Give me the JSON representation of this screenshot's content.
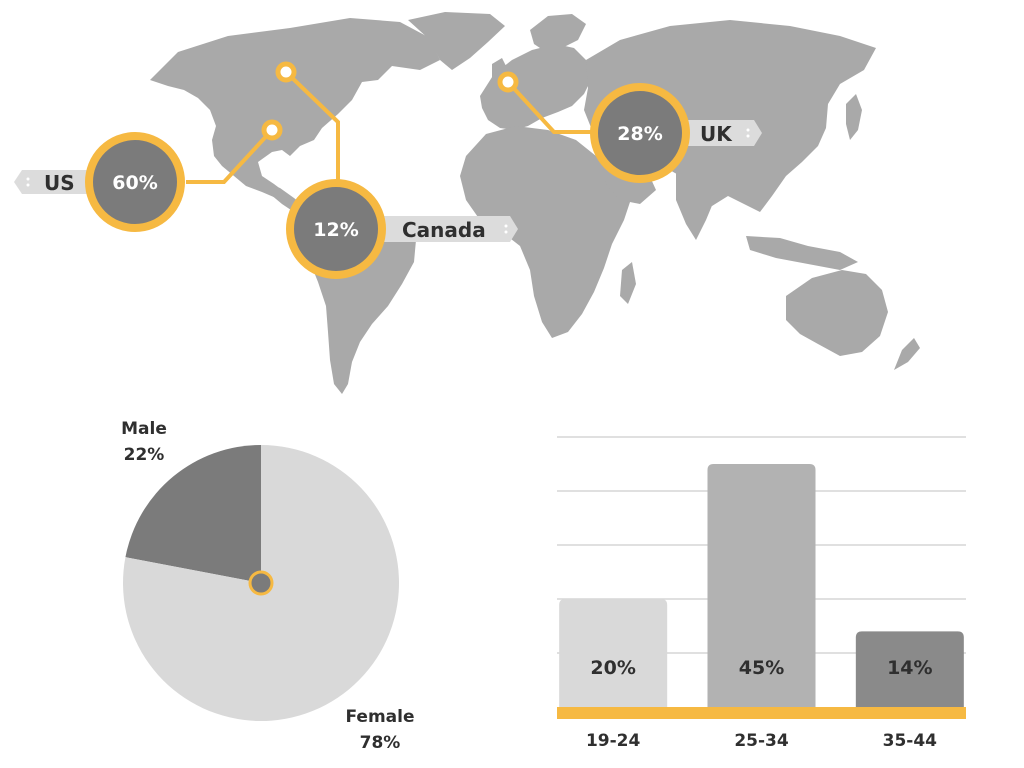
{
  "colors": {
    "map_land": "#a9a9a9",
    "accent": "#f6b942",
    "bubble_fill": "#7b7b7b",
    "tag_fill": "#dcdcdc",
    "text_dark": "#2f2f2f",
    "text_light": "#ffffff",
    "male_slice": "#7b7b7b",
    "female_slice": "#d9d9d9",
    "bar_light": "#d9d9d9",
    "bar_mid": "#b2b2b2",
    "bar_dark": "#8a8a8a",
    "grid": "#d6d6d6"
  },
  "chart_data": [
    {
      "type": "map",
      "title": "",
      "markers": [
        {
          "region": "US",
          "label": "US",
          "value_text": "60%",
          "value": 60
        },
        {
          "region": "Canada",
          "label": "Canada",
          "value_text": "12%",
          "value": 12
        },
        {
          "region": "UK",
          "label": "UK",
          "value_text": "28%",
          "value": 28
        }
      ]
    },
    {
      "type": "pie",
      "title": "",
      "slices": [
        {
          "name": "Male",
          "value": 22,
          "value_text": "22%"
        },
        {
          "name": "Female",
          "value": 78,
          "value_text": "78%"
        }
      ]
    },
    {
      "type": "bar",
      "title": "",
      "xlabel": "",
      "ylabel": "",
      "categories": [
        "19-24",
        "25-34",
        "35-44"
      ],
      "values": [
        20,
        45,
        14
      ],
      "value_labels": [
        "20%",
        "45%",
        "14%"
      ],
      "ylim": [
        0,
        50
      ],
      "grid": true
    }
  ]
}
